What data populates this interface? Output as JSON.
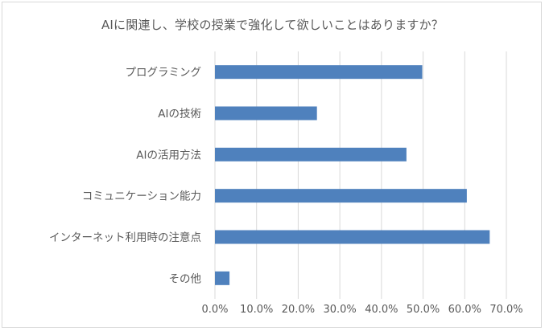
{
  "chart_data": {
    "type": "bar",
    "orientation": "horizontal",
    "title": "AIに関連し、学校の授業で強化して欲しいことはありますか？",
    "categories": [
      "プログラミング",
      "AIの技術",
      "AIの活用方法",
      "コミュニケーション能力",
      "インターネット利用時の注意点",
      "その他"
    ],
    "values": [
      49.8,
      24.5,
      46.0,
      60.5,
      66.0,
      3.5
    ],
    "xlim": [
      0,
      70
    ],
    "ticks": [
      "0.0%",
      "10.0%",
      "20.0%",
      "30.0%",
      "40.0%",
      "50.0%",
      "60.0%",
      "70.0%"
    ],
    "tick_values": [
      0,
      10,
      20,
      30,
      40,
      50,
      60,
      70
    ],
    "grid": true,
    "bar_color": "#4f81bd",
    "grid_color": "#d9d9d9"
  }
}
